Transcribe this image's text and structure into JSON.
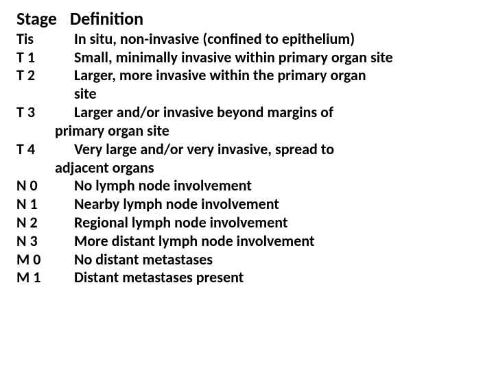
{
  "text_color": "#000000",
  "background_color": "#ffffff",
  "font_family": "Calibri",
  "header": {
    "stage": "Stage",
    "definition": "Definition"
  },
  "rows": [
    {
      "stage": "Tis",
      "def": "In situ, non-invasive (confined to epithelium)"
    },
    {
      "stage": "T 1",
      "def": "Small, minimally invasive within primary organ site"
    },
    {
      "stage": "T 2",
      "def_line1": "Larger, more invasive within the primary organ",
      "def_line2": "site"
    },
    {
      "stage": "T 3",
      "def_line1": "Larger and/or invasive beyond margins of",
      "def_cont": "primary organ site"
    },
    {
      "stage": "T 4",
      "def_line1": "Very large and/or very invasive, spread to",
      "def_cont": "adjacent organs"
    },
    {
      "stage": "N 0",
      "def": "No lymph node involvement"
    },
    {
      "stage": "N 1",
      "def": "Nearby lymph node involvement"
    },
    {
      "stage": "N 2",
      "def": "Regional lymph node involvement"
    },
    {
      "stage": "N 3",
      "def": "More distant lymph node involvement"
    },
    {
      "stage": "M 0",
      "def": "No distant metastases"
    },
    {
      "stage": "M 1",
      "def": "Distant metastases present"
    }
  ]
}
